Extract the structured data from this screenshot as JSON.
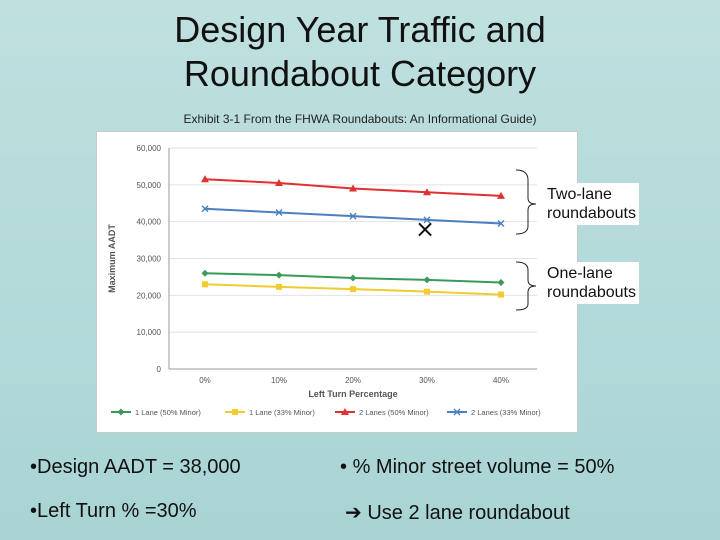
{
  "slide": {
    "title_line1": "Design Year Traffic and",
    "title_line2": "Roundabout Category",
    "subtitle": "Exhibit 3-1  From the FHWA Roundabouts: An Informational Guide)"
  },
  "annotations": {
    "two_lane_line1": "Two-lane",
    "two_lane_line2": "roundabouts",
    "one_lane_line1": "One-lane",
    "one_lane_line2": "roundabouts",
    "marker_glyph": "×"
  },
  "bullets": {
    "design_aadt": "Design AADT = 38,000",
    "minor_volume": "% Minor street volume = 50%",
    "left_turn": "Left Turn % =30%",
    "use_roundabout": "Use 2 lane roundabout",
    "bullet_glyph": "•",
    "arrow_icon": "arrow-right-icon"
  },
  "chart_data": {
    "type": "line",
    "title": "",
    "xlabel": "Left Turn Percentage",
    "ylabel": "Maximum AADT",
    "categories": [
      "0%",
      "10%",
      "20%",
      "30%",
      "40%"
    ],
    "yticks": [
      "0",
      "10,000",
      "20,000",
      "30,000",
      "40,000",
      "50,000",
      "60,000"
    ],
    "ylim": [
      0,
      60000
    ],
    "grid": true,
    "legend": "bottom",
    "series": [
      {
        "name": "1 Lane (50% Minor)",
        "values": [
          26000,
          25500,
          24700,
          24200,
          23500
        ],
        "color": "#3a9a5a",
        "marker": "diamond"
      },
      {
        "name": "1 Lane (33% Minor)",
        "values": [
          23000,
          22300,
          21700,
          21000,
          20200
        ],
        "color": "#f2cc2f",
        "marker": "square"
      },
      {
        "name": "2 Lanes (50% Minor)",
        "values": [
          51500,
          50500,
          49000,
          48000,
          47000
        ],
        "color": "#e03030",
        "marker": "triangle"
      },
      {
        "name": "2 Lanes (33% Minor)",
        "values": [
          43500,
          42500,
          41500,
          40500,
          39500
        ],
        "color": "#4a7fc0",
        "marker": "x"
      }
    ]
  }
}
